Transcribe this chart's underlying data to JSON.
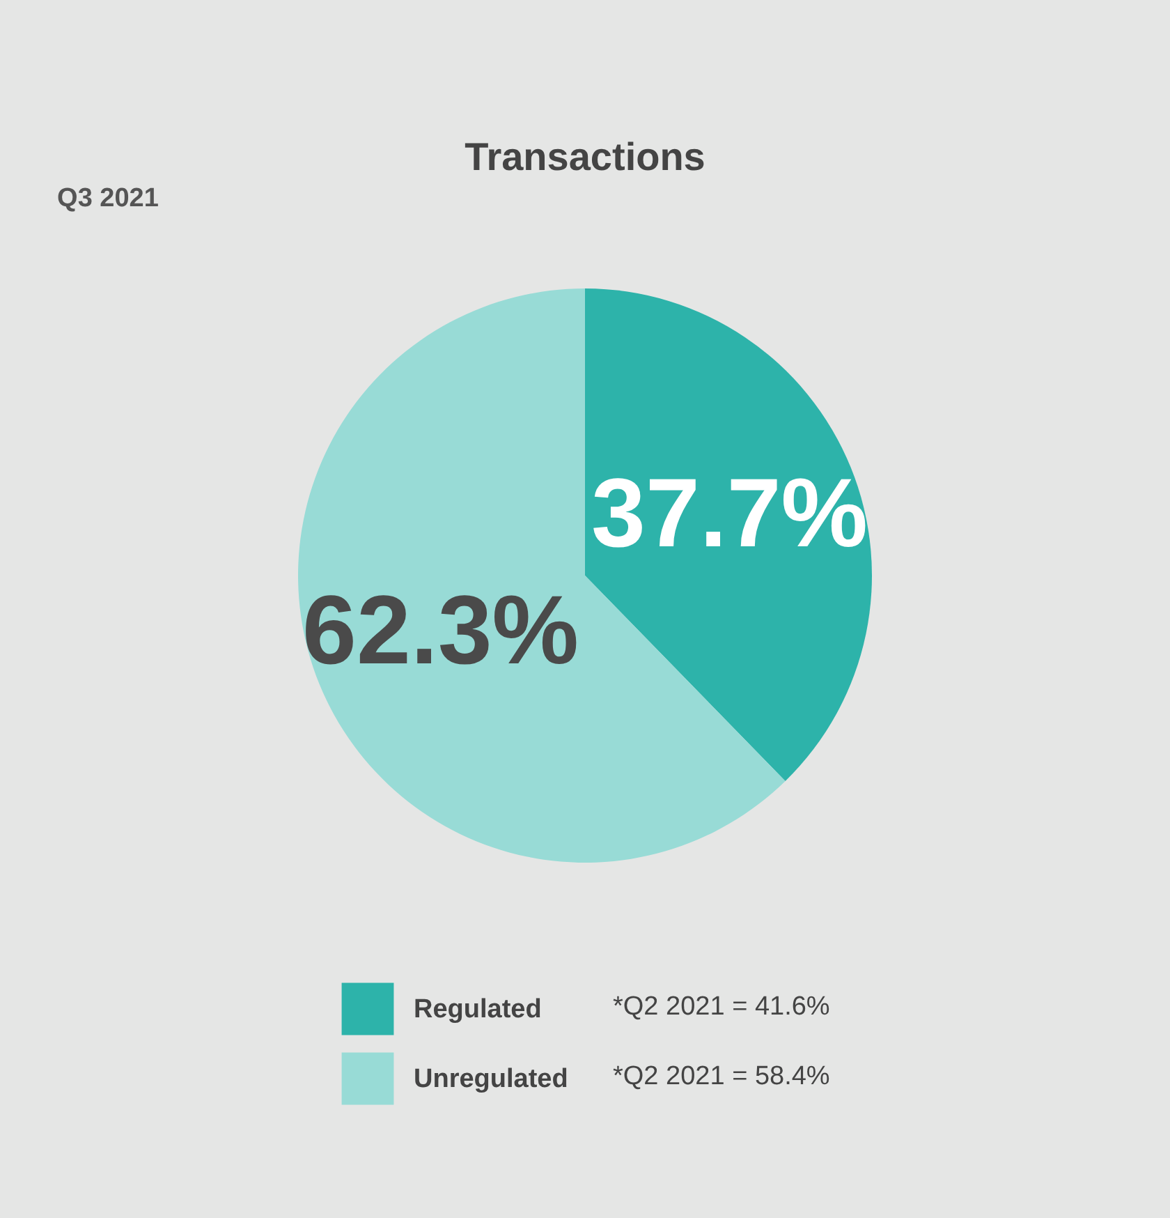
{
  "chart_data": {
    "type": "pie",
    "title": "Transactions",
    "subtitle": "Q3 2021",
    "categories": [
      "Regulated",
      "Unregulated"
    ],
    "values": [
      37.7,
      62.3
    ],
    "colors": [
      "#2db3aa",
      "#98dbd6"
    ],
    "value_labels": [
      "37.7%",
      "62.3%"
    ],
    "legend": "bottom",
    "annotations": [
      "*Q2 2021 = 41.6%",
      "*Q2 2021 = 58.4%"
    ]
  }
}
